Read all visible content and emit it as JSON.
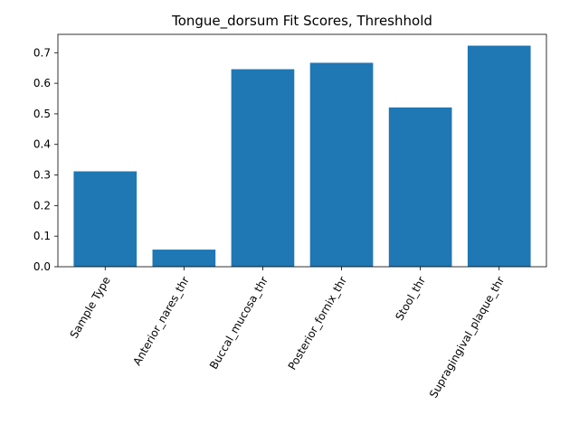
{
  "chart_data": {
    "type": "bar",
    "title": "Tongue_dorsum Fit Scores, Threshhold",
    "xlabel": "",
    "ylabel": "",
    "categories": [
      "Sample Type",
      "Anterior_nares_thr",
      "Buccal_mucosa_thr",
      "Posterior_fornix_thr",
      "Stool_thr",
      "Supragingival_plaque_thr"
    ],
    "values": [
      0.312,
      0.056,
      0.646,
      0.667,
      0.521,
      0.723
    ],
    "ylim": [
      0,
      0.76
    ],
    "yticks": [
      "0.0",
      "0.1",
      "0.2",
      "0.3",
      "0.4",
      "0.5",
      "0.6",
      "0.7"
    ],
    "bar_color": "#1f77b4",
    "grid": false,
    "legend": "none"
  }
}
